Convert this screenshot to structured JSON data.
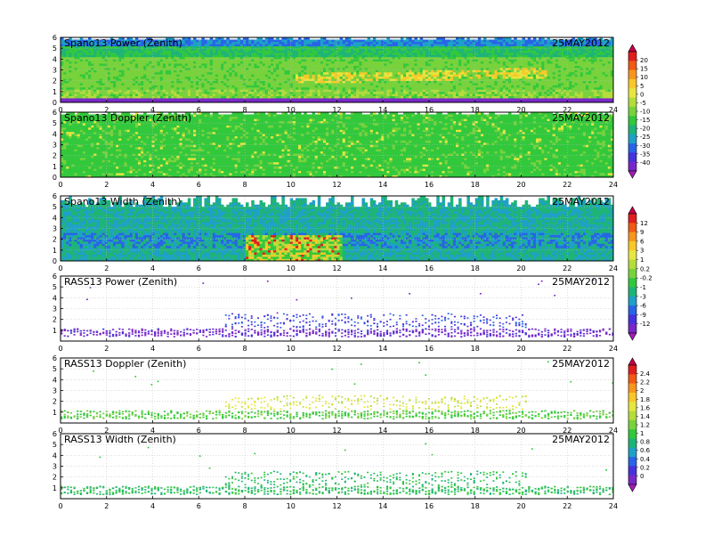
{
  "chart_data": {
    "type": "heatmap",
    "date": "25MAY2012",
    "x_ticks": [
      0,
      2,
      4,
      6,
      8,
      10,
      12,
      14,
      16,
      18,
      20,
      22,
      24
    ],
    "xlim": [
      0,
      24
    ],
    "panels": [
      {
        "title": "Spano13 Power (Zenith)",
        "date": "25MAY2012",
        "ylim": [
          0,
          6
        ],
        "y_ticks": [
          0,
          1,
          2,
          3,
          4,
          5,
          6
        ],
        "fill": "dense",
        "scale": "power"
      },
      {
        "title": "Spano13 Doppler (Zenith)",
        "date": "25MAY2012",
        "ylim": [
          0,
          6
        ],
        "y_ticks": [
          0,
          1,
          2,
          3,
          4,
          5,
          6
        ],
        "fill": "dense",
        "scale": "power"
      },
      {
        "title": "Spano13 Width (Zenith)",
        "date": "25MAY2012",
        "ylim": [
          0,
          6
        ],
        "y_ticks": [
          0,
          1,
          2,
          3,
          4,
          5,
          6
        ],
        "fill": "dense",
        "scale": "width"
      },
      {
        "title": "RASS13 Power (Zenith)",
        "date": "25MAY2012",
        "ylim": [
          0,
          6
        ],
        "y_ticks": [
          1,
          2,
          3,
          4,
          5,
          6
        ],
        "fill": "sparse",
        "scale": "width"
      },
      {
        "title": "RASS13 Doppler (Zenith)",
        "date": "25MAY2012",
        "ylim": [
          0,
          6
        ],
        "y_ticks": [
          1,
          2,
          3,
          4,
          5,
          6
        ],
        "fill": "sparse",
        "scale": "doppler"
      },
      {
        "title": "RASS13 Width (Zenith)",
        "date": "25MAY2012",
        "ylim": [
          0,
          6
        ],
        "y_ticks": [
          1,
          2,
          3,
          4,
          5,
          6
        ],
        "fill": "sparse",
        "scale": "doppler"
      }
    ],
    "colorbars": [
      {
        "name": "power",
        "ticks": [
          "20",
          "15",
          "10",
          "5",
          "0",
          "-5",
          "-10",
          "-15",
          "-20",
          "-25",
          "-30",
          "-35",
          "-40"
        ],
        "colors": [
          "#c80046",
          "#e01e1e",
          "#f05a14",
          "#f7961e",
          "#f8c828",
          "#e6e640",
          "#b4dc3c",
          "#78d23c",
          "#32c83c",
          "#1eb478",
          "#1ea0c8",
          "#2864e6",
          "#4632dc",
          "#7828c8",
          "#a01eb4"
        ]
      },
      {
        "name": "width",
        "ticks": [
          "12",
          "9",
          "6",
          "3",
          "1",
          "0.2",
          "-0.2",
          "-1",
          "-3",
          "-6",
          "-9",
          "-12"
        ],
        "colors": [
          "#c80046",
          "#e01e1e",
          "#f05a14",
          "#f7961e",
          "#f8c828",
          "#e6e640",
          "#b4dc3c",
          "#78d23c",
          "#32c83c",
          "#1eb478",
          "#1ea0c8",
          "#2864e6",
          "#4632dc",
          "#7828c8",
          "#a01eb4"
        ]
      },
      {
        "name": "doppler",
        "ticks": [
          "2.4",
          "2.2",
          "2",
          "1.8",
          "1.6",
          "1.4",
          "1.2",
          "1",
          "0.8",
          "0.6",
          "0.4",
          "0.2",
          "0"
        ],
        "colors": [
          "#c80046",
          "#e01e1e",
          "#f05a14",
          "#f7961e",
          "#f8c828",
          "#e6e640",
          "#b4dc3c",
          "#78d23c",
          "#32c83c",
          "#1eb478",
          "#1ea0c8",
          "#2864e6",
          "#4632dc",
          "#7828c8",
          "#a01eb4"
        ]
      }
    ]
  }
}
